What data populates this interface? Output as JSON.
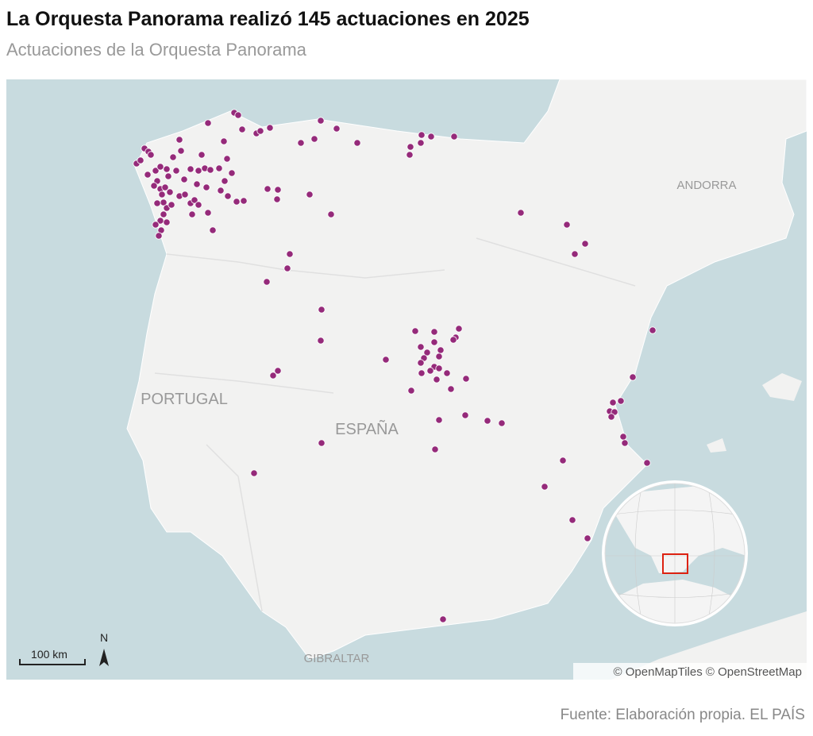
{
  "header": {
    "title": "La Orquesta Panorama realizó 145 actuaciones en 2025",
    "subtitle": "Actuaciones de la Orquesta Panorama"
  },
  "map": {
    "labels": [
      "ANDORRA",
      "PORTUGAL",
      "ESPAÑA",
      "GIBRALTAR"
    ],
    "scale": "100 km",
    "north": "N",
    "attribution": "© OpenMapTiles © OpenStreetMap"
  },
  "footer": {
    "source": "Fuente: Elaboración propia. EL PAÍS"
  }
}
